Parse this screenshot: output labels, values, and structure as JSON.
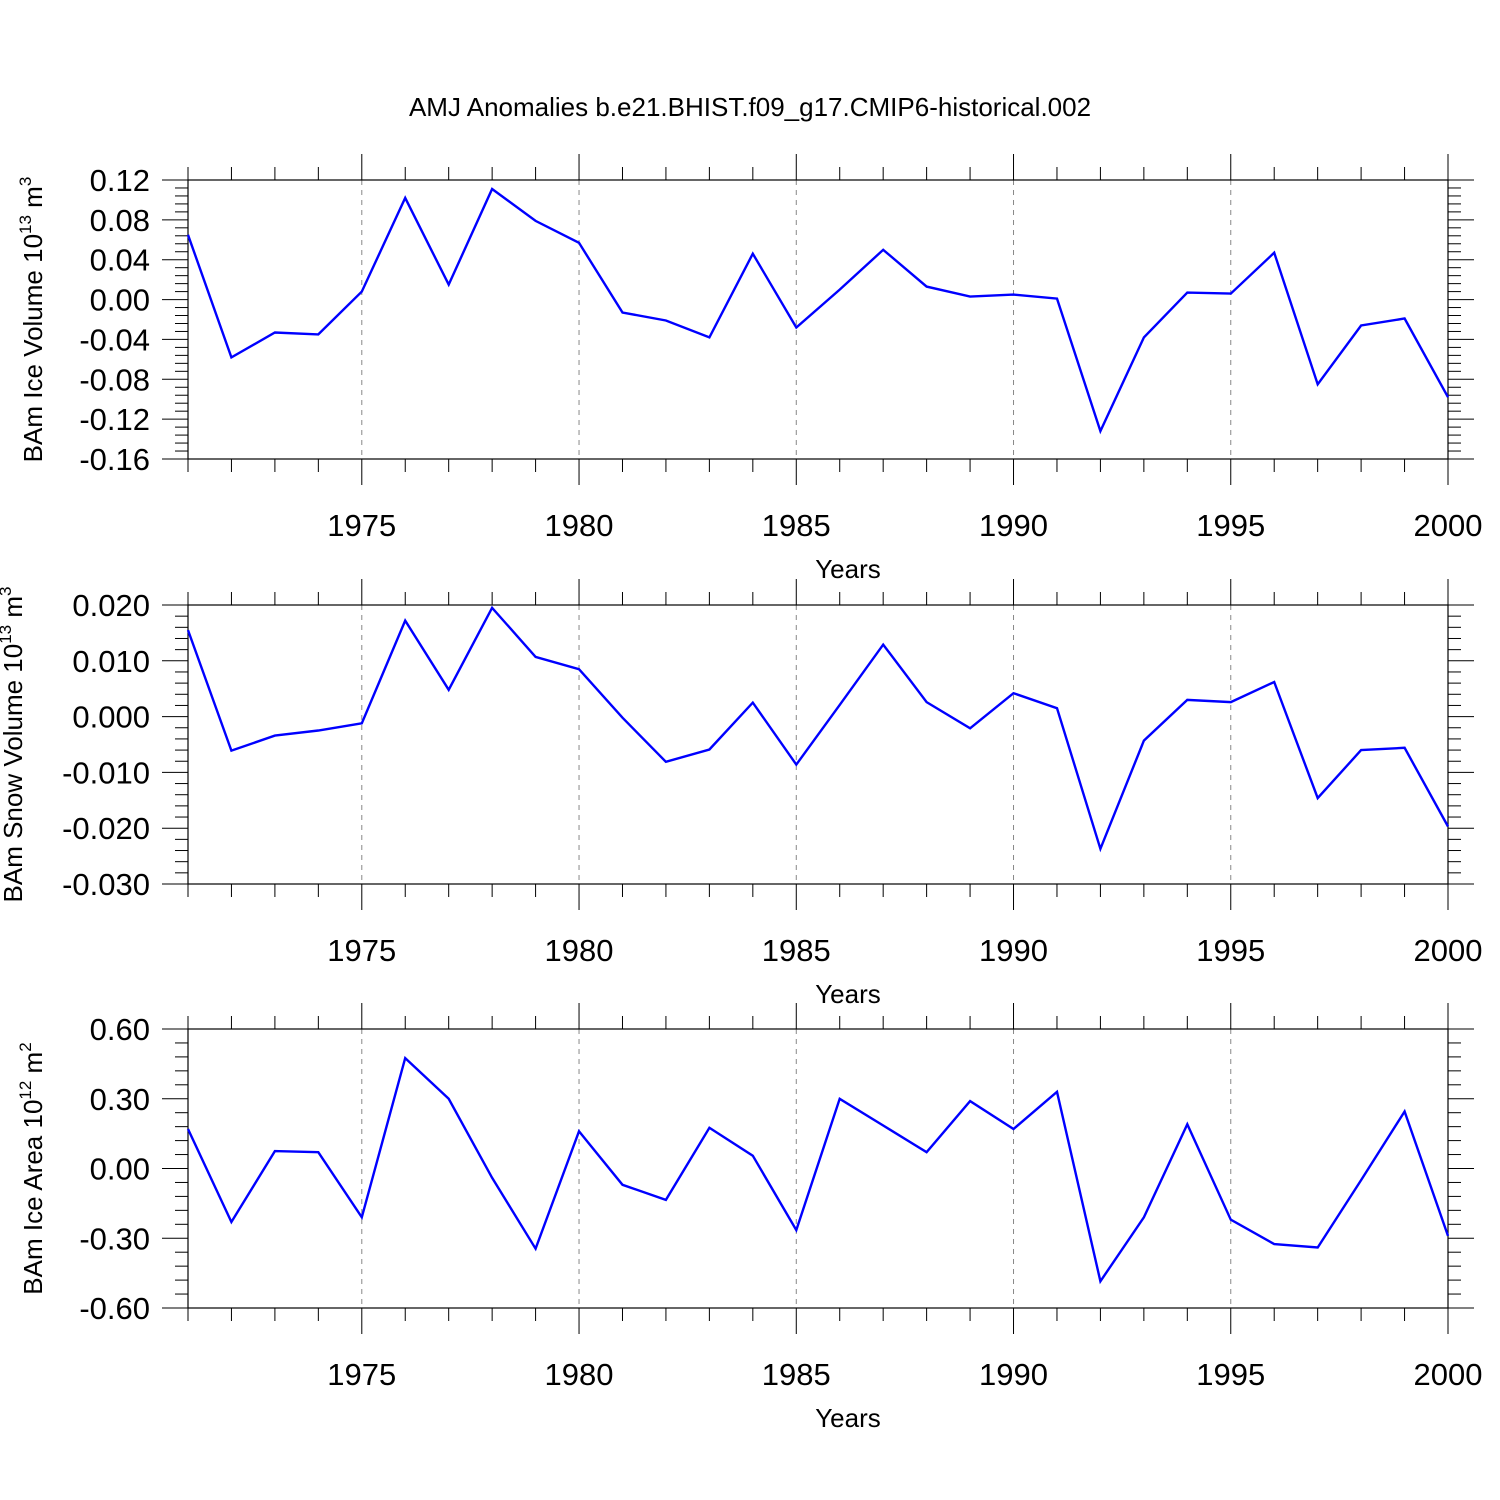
{
  "title": "AMJ Anomalies b.e21.BHIST.f09_g17.CMIP6-historical.002",
  "colors": {
    "line": "#0000ff",
    "axis": "#000000",
    "grid": "#888888"
  },
  "chart_data": [
    {
      "type": "line",
      "ylabel": "BAm Ice Volume 10",
      "ylabel_exp": "13",
      "ylabel_unit": " m",
      "ylabel_unit_exp": "3",
      "xlabel": "Years",
      "xlim": [
        1971,
        2000
      ],
      "ylim": [
        -0.16,
        0.12
      ],
      "x_ticks": [
        "1975",
        "1980",
        "1985",
        "1990",
        "1995",
        "2000"
      ],
      "x_tick_values": [
        1975,
        1980,
        1985,
        1990,
        1995,
        2000
      ],
      "y_tick_values": [
        -0.16,
        -0.12,
        -0.08,
        -0.04,
        0.0,
        0.04,
        0.08,
        0.12
      ],
      "y_ticks": [
        "-0.16",
        "-0.12",
        "-0.08",
        "-0.04",
        "0.00",
        "0.04",
        "0.08",
        "0.12"
      ],
      "grid": "vertical dashed at labeled years",
      "x": [
        1971,
        1972,
        1973,
        1974,
        1975,
        1976,
        1977,
        1978,
        1979,
        1980,
        1981,
        1982,
        1983,
        1984,
        1985,
        1986,
        1987,
        1988,
        1989,
        1990,
        1991,
        1992,
        1993,
        1994,
        1995,
        1996,
        1997,
        1998,
        1999,
        2000
      ],
      "values": [
        0.065,
        -0.058,
        -0.033,
        -0.035,
        0.008,
        0.102,
        0.015,
        0.111,
        0.079,
        0.057,
        -0.013,
        -0.021,
        -0.038,
        0.046,
        -0.028,
        0.01,
        0.05,
        0.013,
        0.003,
        0.005,
        0.001,
        -0.132,
        -0.038,
        0.007,
        0.006,
        0.047,
        -0.085,
        -0.026,
        -0.019,
        -0.098
      ]
    },
    {
      "type": "line",
      "ylabel": "BAm Snow Volume 10",
      "ylabel_exp": "13",
      "ylabel_unit": " m",
      "ylabel_unit_exp": "3",
      "xlabel": "Years",
      "xlim": [
        1971,
        2000
      ],
      "ylim": [
        -0.03,
        0.02
      ],
      "x_ticks": [
        "1975",
        "1980",
        "1985",
        "1990",
        "1995",
        "2000"
      ],
      "x_tick_values": [
        1975,
        1980,
        1985,
        1990,
        1995,
        2000
      ],
      "y_tick_values": [
        -0.03,
        -0.02,
        -0.01,
        0.0,
        0.01,
        0.02
      ],
      "y_ticks": [
        "-0.030",
        "-0.020",
        "-0.010",
        "0.000",
        "0.010",
        "0.020"
      ],
      "grid": "vertical dashed at labeled years",
      "x": [
        1971,
        1972,
        1973,
        1974,
        1975,
        1976,
        1977,
        1978,
        1979,
        1980,
        1981,
        1982,
        1983,
        1984,
        1985,
        1986,
        1987,
        1988,
        1989,
        1990,
        1991,
        1992,
        1993,
        1994,
        1995,
        1996,
        1997,
        1998,
        1999,
        2000
      ],
      "values": [
        0.0155,
        -0.0061,
        -0.0034,
        -0.0025,
        -0.0012,
        0.0172,
        0.0048,
        0.0195,
        0.0107,
        0.0085,
        -0.0002,
        -0.0081,
        -0.0059,
        0.0025,
        -0.0086,
        0.0021,
        0.0129,
        0.0026,
        -0.0021,
        0.0042,
        0.0015,
        -0.0237,
        -0.0043,
        0.003,
        0.0026,
        0.0062,
        -0.0146,
        -0.006,
        -0.0056,
        -0.0197
      ]
    },
    {
      "type": "line",
      "ylabel": "BAm Ice Area 10",
      "ylabel_exp": "12",
      "ylabel_unit": " m",
      "ylabel_unit_exp": "2",
      "xlabel": "Years",
      "xlim": [
        1971,
        2000
      ],
      "ylim": [
        -0.6,
        0.6
      ],
      "x_ticks": [
        "1975",
        "1980",
        "1985",
        "1990",
        "1995",
        "2000"
      ],
      "x_tick_values": [
        1975,
        1980,
        1985,
        1990,
        1995,
        2000
      ],
      "y_tick_values": [
        -0.6,
        -0.3,
        0.0,
        0.3,
        0.6
      ],
      "y_ticks": [
        "-0.60",
        "-0.30",
        "0.00",
        "0.30",
        "0.60"
      ],
      "grid": "vertical dashed at labeled years",
      "x": [
        1971,
        1972,
        1973,
        1974,
        1975,
        1976,
        1977,
        1978,
        1979,
        1980,
        1981,
        1982,
        1983,
        1984,
        1985,
        1986,
        1987,
        1988,
        1989,
        1990,
        1991,
        1992,
        1993,
        1994,
        1995,
        1996,
        1997,
        1998,
        1999,
        2000
      ],
      "values": [
        0.17,
        -0.23,
        0.075,
        0.07,
        -0.21,
        0.475,
        0.3,
        -0.04,
        -0.345,
        0.16,
        -0.07,
        -0.135,
        0.175,
        0.055,
        -0.265,
        0.3,
        0.185,
        0.07,
        0.29,
        0.17,
        0.33,
        -0.485,
        -0.21,
        0.19,
        -0.22,
        -0.325,
        -0.34,
        -0.05,
        0.245,
        -0.29
      ]
    }
  ]
}
